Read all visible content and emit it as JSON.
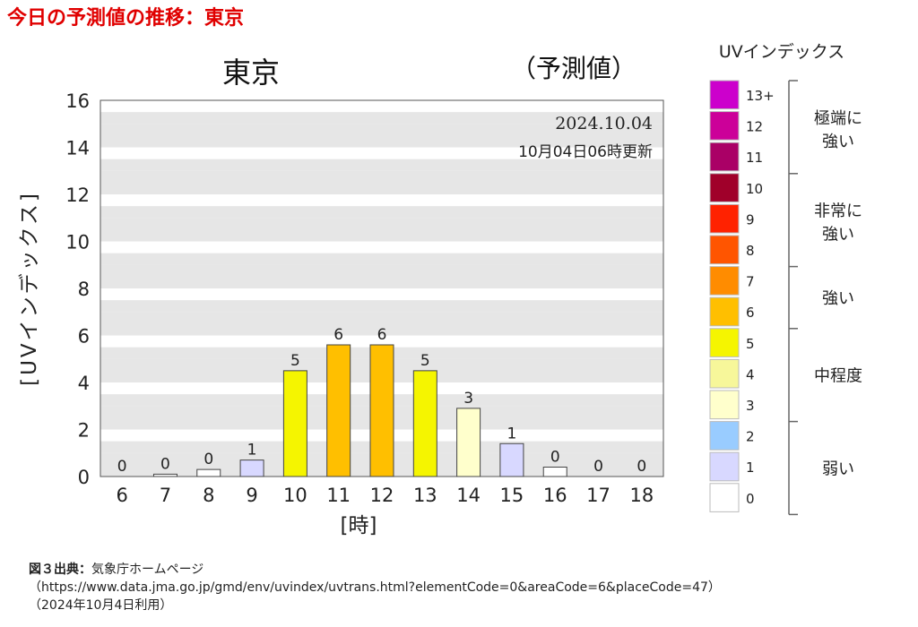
{
  "page_title": "今日の予測値の推移：東京",
  "source": {
    "label": "図３出典：",
    "org": "気象庁ホームページ",
    "url": "（https://www.data.jma.go.jp/gmd/env/uvindex/uvtrans.html?elementCode=0&areaCode=6&placeCode=47）",
    "date": "（2024年10月4日利用）"
  },
  "chart_data": {
    "type": "bar",
    "title": "東京",
    "subtitle": "（予測値）",
    "date": "2024.10.04",
    "updated": "10月04日06時更新",
    "xlabel": "[時]",
    "ylabel": "[UVインデックス]",
    "ylim": [
      0,
      16
    ],
    "yticks": [
      "0",
      "2",
      "4",
      "6",
      "8",
      "10",
      "12",
      "14",
      "16"
    ],
    "categories": [
      "6",
      "7",
      "8",
      "9",
      "10",
      "11",
      "12",
      "13",
      "14",
      "15",
      "16",
      "17",
      "18"
    ],
    "values": [
      0,
      0.1,
      0.3,
      0.7,
      4.5,
      5.6,
      5.6,
      4.5,
      2.9,
      1.4,
      0.4,
      0,
      0
    ],
    "labels": [
      "0",
      "0",
      "0",
      "1",
      "5",
      "6",
      "6",
      "5",
      "3",
      "1",
      "0",
      "0",
      "0"
    ],
    "grid": "horizontal bands"
  },
  "legend": {
    "title": "UVインデックス",
    "levels": [
      {
        "label": "13+",
        "color": "#cc00cc"
      },
      {
        "label": "12",
        "color": "#cc0099"
      },
      {
        "label": "11",
        "color": "#aa0066"
      },
      {
        "label": "10",
        "color": "#a0002a"
      },
      {
        "label": "9",
        "color": "#ff2200"
      },
      {
        "label": "8",
        "color": "#ff5500"
      },
      {
        "label": "7",
        "color": "#ff8c00"
      },
      {
        "label": "6",
        "color": "#ffbf00"
      },
      {
        "label": "5",
        "color": "#f5f500"
      },
      {
        "label": "4",
        "color": "#f7f79a"
      },
      {
        "label": "3",
        "color": "#ffffcc"
      },
      {
        "label": "2",
        "color": "#99ccff"
      },
      {
        "label": "1",
        "color": "#d8d8ff"
      },
      {
        "label": "0",
        "color": "#ffffff"
      }
    ],
    "groups": [
      {
        "line1": "極端に",
        "line2": "強い"
      },
      {
        "line1": "非常に",
        "line2": "強い"
      },
      {
        "line1": "強い",
        "line2": ""
      },
      {
        "line1": "中程度",
        "line2": ""
      },
      {
        "line1": "弱い",
        "line2": ""
      }
    ]
  }
}
